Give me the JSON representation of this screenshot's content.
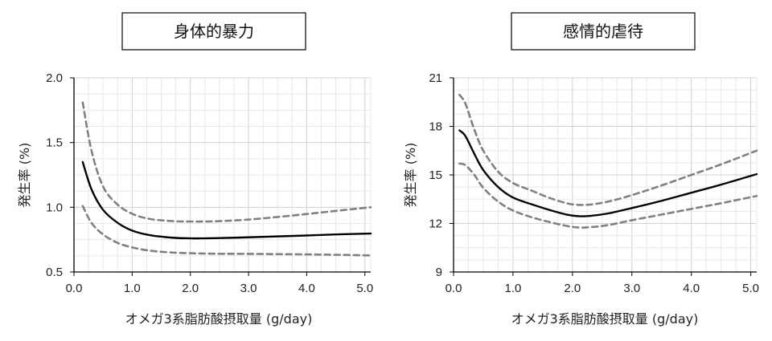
{
  "chart_data": [
    {
      "type": "line",
      "title": "身体的暴力",
      "xlabel": "オメガ3系脂肪酸摂取量 (g/day)",
      "ylabel": "発生率 (%)",
      "xlim": [
        0,
        5.1
      ],
      "ylim": [
        0.5,
        2.0
      ],
      "x_ticks": [
        "0.0",
        "1.0",
        "2.0",
        "3.0",
        "4.0",
        "5.0"
      ],
      "y_ticks": [
        "0.5",
        "1.0",
        "1.5",
        "2.0"
      ],
      "grid": true,
      "x": [
        0.15,
        0.3,
        0.5,
        0.75,
        1.0,
        1.3,
        1.7,
        2.0,
        2.2,
        2.5,
        3.0,
        3.5,
        4.0,
        4.5,
        5.1
      ],
      "series": [
        {
          "values": [
            1.35,
            1.14,
            0.98,
            0.88,
            0.82,
            0.785,
            0.765,
            0.76,
            0.76,
            0.762,
            0.768,
            0.775,
            0.782,
            0.79,
            0.797
          ],
          "style": "solid",
          "color": "#000000"
        },
        {
          "values": [
            1.81,
            1.44,
            1.16,
            1.02,
            0.95,
            0.91,
            0.893,
            0.89,
            0.89,
            0.893,
            0.905,
            0.925,
            0.948,
            0.972,
            1.0
          ],
          "style": "dashed",
          "color": "#808080"
        },
        {
          "values": [
            1.01,
            0.88,
            0.79,
            0.725,
            0.69,
            0.665,
            0.65,
            0.645,
            0.643,
            0.641,
            0.64,
            0.638,
            0.636,
            0.633,
            0.628
          ],
          "style": "dashed",
          "color": "#808080"
        }
      ]
    },
    {
      "type": "line",
      "title": "感情的虐待",
      "xlabel": "オメガ3系脂肪酸摂取量 (g/day)",
      "ylabel": "発生率 (%)",
      "xlim": [
        0,
        5.1
      ],
      "ylim": [
        9,
        21
      ],
      "x_ticks": [
        "0.0",
        "1.0",
        "2.0",
        "3.0",
        "4.0",
        "5.0"
      ],
      "y_ticks": [
        "9",
        "12",
        "15",
        "18",
        "21"
      ],
      "grid": true,
      "x": [
        0.1,
        0.2,
        0.35,
        0.5,
        0.75,
        1.0,
        1.3,
        1.6,
        1.9,
        2.1,
        2.3,
        2.6,
        3.0,
        3.5,
        4.0,
        4.5,
        5.1
      ],
      "series": [
        {
          "values": [
            17.75,
            17.4,
            16.3,
            15.3,
            14.25,
            13.6,
            13.2,
            12.85,
            12.55,
            12.45,
            12.47,
            12.62,
            12.95,
            13.4,
            13.9,
            14.4,
            15.05
          ],
          "style": "solid",
          "color": "#000000"
        },
        {
          "values": [
            19.95,
            19.4,
            17.8,
            16.5,
            15.2,
            14.5,
            14.05,
            13.6,
            13.25,
            13.15,
            13.17,
            13.35,
            13.75,
            14.35,
            15.0,
            15.65,
            16.5
          ],
          "style": "dashed",
          "color": "#808080"
        },
        {
          "values": [
            15.7,
            15.6,
            15.0,
            14.2,
            13.35,
            12.8,
            12.4,
            12.1,
            11.85,
            11.75,
            11.77,
            11.9,
            12.2,
            12.55,
            12.9,
            13.25,
            13.7
          ],
          "style": "dashed",
          "color": "#808080"
        }
      ]
    }
  ]
}
